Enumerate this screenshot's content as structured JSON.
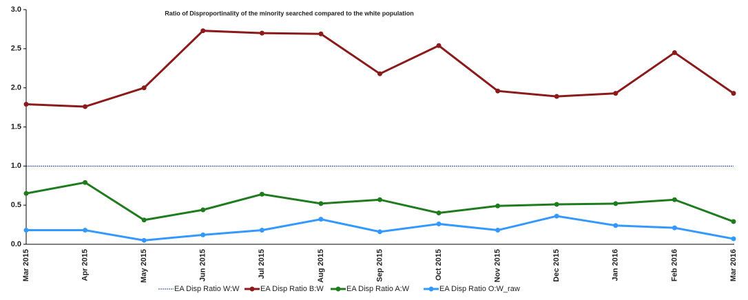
{
  "chart_data": {
    "type": "line",
    "title": "Ratio of Disproportinality of the minority searched compared to the white population",
    "categories": [
      "Mar 2015",
      "Apr 2015",
      "May 2015",
      "Jun 2015",
      "Jul 2015",
      "Aug 2015",
      "Sep 2015",
      "Oct 2015",
      "Nov 2015",
      "Dec 2015",
      "Jan 2016",
      "Feb 2016",
      "Mar 2016"
    ],
    "series": [
      {
        "name": "EA Disp Ratio W:W",
        "color": "#1f3a8a",
        "linestyle": "dotted",
        "markers": false,
        "values": [
          1,
          1,
          1,
          1,
          1,
          1,
          1,
          1,
          1,
          1,
          1,
          1,
          1
        ]
      },
      {
        "name": "EA Disp Ratio B:W",
        "color": "#8b1a1a",
        "linestyle": "solid",
        "markers": true,
        "values": [
          1.79,
          1.76,
          2.0,
          2.73,
          2.7,
          2.69,
          2.18,
          2.54,
          1.96,
          1.89,
          1.93,
          2.45,
          1.93
        ]
      },
      {
        "name": "EA Disp Ratio A:W",
        "color": "#1e7b1e",
        "linestyle": "solid",
        "markers": true,
        "values": [
          0.65,
          0.79,
          0.31,
          0.44,
          0.64,
          0.52,
          0.57,
          0.4,
          0.49,
          0.51,
          0.52,
          0.57,
          0.29
        ]
      },
      {
        "name": "EA Disp Ratio O:W_raw",
        "color": "#3399ff",
        "linestyle": "solid",
        "markers": true,
        "values": [
          0.18,
          0.18,
          0.05,
          0.12,
          0.18,
          0.32,
          0.16,
          0.26,
          0.18,
          0.36,
          0.24,
          0.21,
          0.07
        ]
      }
    ],
    "ylim": [
      0,
      3
    ],
    "yticks": [
      {
        "value": 0,
        "label": "0.0"
      },
      0.5,
      {
        "value": 1,
        "label": "1.0"
      },
      1.5,
      {
        "value": 2,
        "label": "2.0"
      },
      2.5,
      {
        "value": 3,
        "label": "3.0"
      }
    ],
    "grid": false,
    "legend": "bottom"
  }
}
